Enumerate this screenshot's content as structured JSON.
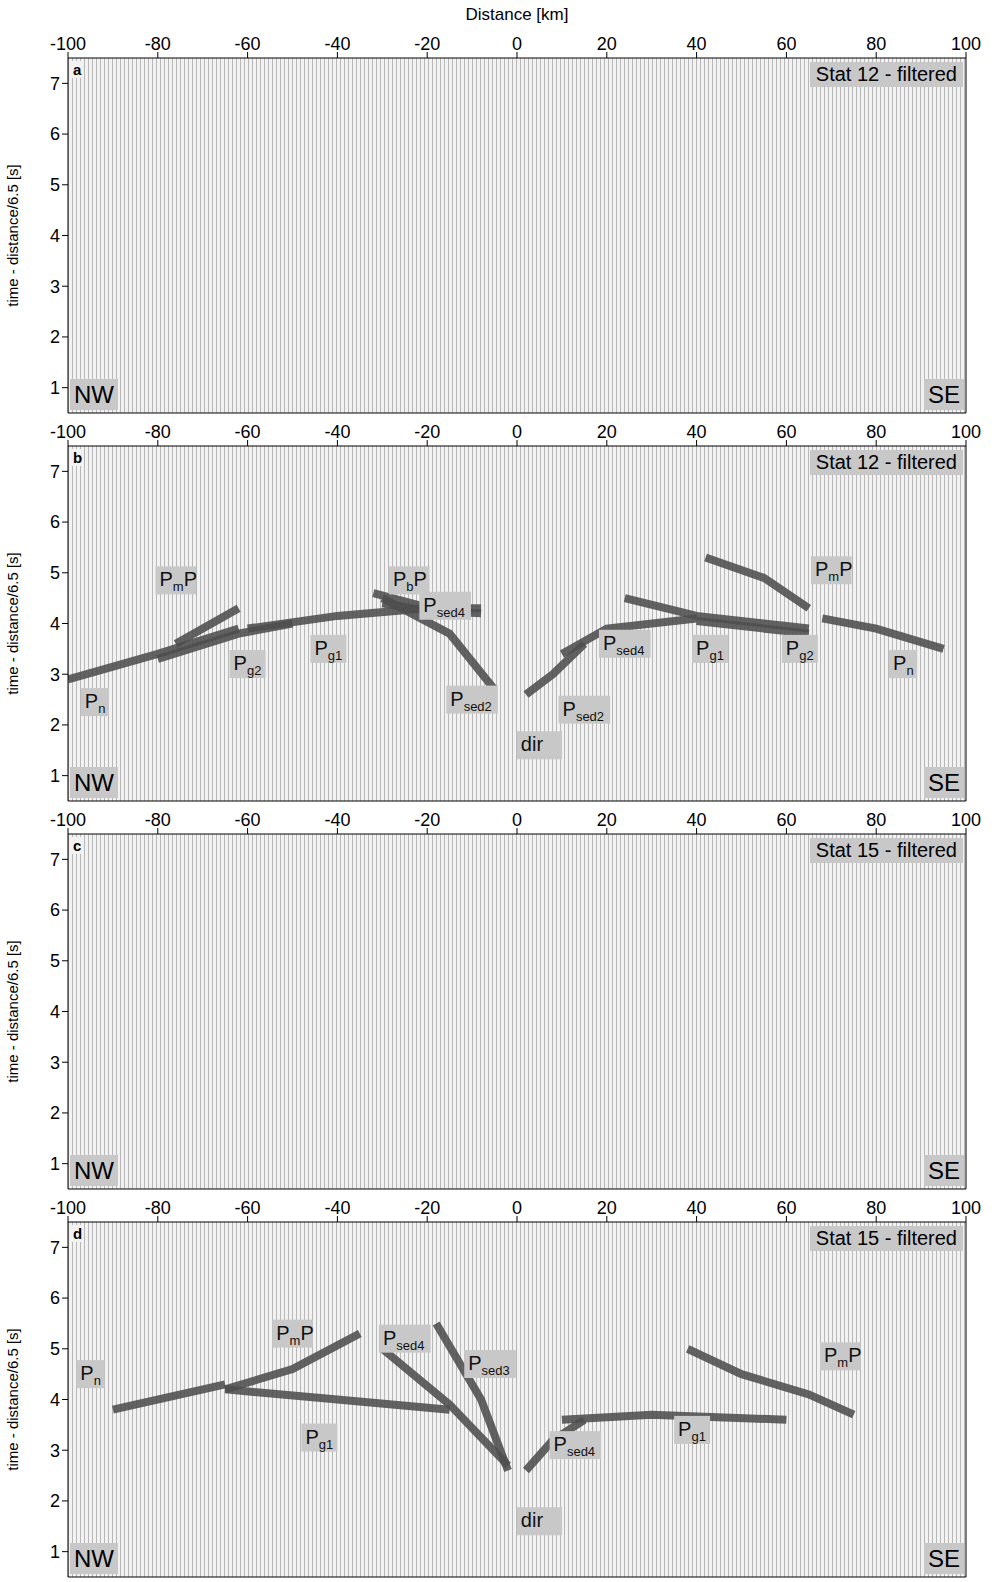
{
  "chart_data": [
    {
      "type": "line",
      "panel": "a",
      "title": "Stat 12 - filtered",
      "x_label": "Distance [km]",
      "y_label": "time - distance/6.5 [s]",
      "xlim": [
        -100,
        100
      ],
      "xticks": [
        -100,
        -80,
        -60,
        -40,
        -20,
        0,
        20,
        40,
        60,
        80,
        100
      ],
      "ylim": [
        0.5,
        7.5
      ],
      "yticks": [
        1,
        2,
        3,
        4,
        5,
        6,
        7
      ],
      "corner_labels": [
        "NW",
        "SE"
      ],
      "series": [],
      "annotations": []
    },
    {
      "type": "line",
      "panel": "b",
      "title": "Stat 12 - filtered",
      "y_label": "time - distance/6.5 [s]",
      "xlim": [
        -100,
        100
      ],
      "xticks": [
        -100,
        -80,
        -60,
        -40,
        -20,
        0,
        20,
        40,
        60,
        80,
        100
      ],
      "ylim": [
        0.5,
        7.5
      ],
      "yticks": [
        1,
        2,
        3,
        4,
        5,
        6,
        7
      ],
      "corner_labels": [
        "NW",
        "SE"
      ],
      "series": [
        {
          "name": "Pn",
          "color": "#4d4d4d",
          "x": [
            -100,
            -80,
            -62
          ],
          "values": [
            2.9,
            3.4,
            3.9
          ]
        },
        {
          "name": "PmP",
          "color": "#4d4d4d",
          "x": [
            -76,
            -62
          ],
          "values": [
            3.6,
            4.3
          ]
        },
        {
          "name": "Pg2",
          "color": "#4d4d4d",
          "x": [
            -80,
            -62,
            -50
          ],
          "values": [
            3.3,
            3.8,
            4.0
          ]
        },
        {
          "name": "Pg1",
          "color": "#4d4d4d",
          "x": [
            -60,
            -40,
            -20,
            -8
          ],
          "values": [
            3.9,
            4.15,
            4.3,
            4.3
          ]
        },
        {
          "name": "PbP",
          "color": "#4d4d4d",
          "x": [
            -32,
            -15
          ],
          "values": [
            4.6,
            4.2
          ]
        },
        {
          "name": "Psed4",
          "color": "#4d4d4d",
          "x": [
            -30,
            -20,
            -8
          ],
          "values": [
            4.4,
            4.25,
            4.2
          ]
        },
        {
          "name": "Psed2",
          "color": "#4d4d4d",
          "x": [
            -30,
            -15,
            -5
          ],
          "values": [
            4.5,
            3.8,
            2.7
          ]
        },
        {
          "name": "Psed2",
          "color": "#4d4d4d",
          "x": [
            2,
            8,
            15
          ],
          "values": [
            2.6,
            3.0,
            3.6
          ]
        },
        {
          "name": "Psed4",
          "color": "#4d4d4d",
          "x": [
            10,
            20,
            40
          ],
          "values": [
            3.4,
            3.9,
            4.1
          ]
        },
        {
          "name": "Pg1",
          "color": "#4d4d4d",
          "x": [
            24,
            40,
            65
          ],
          "values": [
            4.5,
            4.15,
            3.9
          ]
        },
        {
          "name": "PmP",
          "color": "#4d4d4d",
          "x": [
            42,
            55,
            65
          ],
          "values": [
            5.3,
            4.9,
            4.3
          ]
        },
        {
          "name": "Pg2",
          "color": "#4d4d4d",
          "x": [
            40,
            65
          ],
          "values": [
            4.05,
            3.8
          ]
        },
        {
          "name": "Pn",
          "color": "#4d4d4d",
          "x": [
            68,
            80,
            95
          ],
          "values": [
            4.1,
            3.9,
            3.5
          ]
        }
      ],
      "annotations": [
        {
          "text": "PmP",
          "x": -76,
          "y": 4.85
        },
        {
          "text": "Pn",
          "x": -94,
          "y": 2.45
        },
        {
          "text": "Pg2",
          "x": -60,
          "y": 3.2
        },
        {
          "text": "Pg1",
          "x": -42,
          "y": 3.5
        },
        {
          "text": "PbP",
          "x": -24,
          "y": 4.85
        },
        {
          "text": "Psed4",
          "x": -16,
          "y": 4.35
        },
        {
          "text": "Psed2",
          "x": -10,
          "y": 2.5
        },
        {
          "text": "Psed2",
          "x": 15,
          "y": 2.3
        },
        {
          "text": "Psed4",
          "x": 24,
          "y": 3.6
        },
        {
          "text": "Pg1",
          "x": 43,
          "y": 3.5
        },
        {
          "text": "PmP",
          "x": 70,
          "y": 5.05
        },
        {
          "text": "Pg2",
          "x": 63,
          "y": 3.5
        },
        {
          "text": "Pn",
          "x": 86,
          "y": 3.2
        },
        {
          "text": "dir",
          "x": 5,
          "y": 1.6
        }
      ]
    },
    {
      "type": "line",
      "panel": "c",
      "title": "Stat 15 - filtered",
      "y_label": "time - distance/6.5 [s]",
      "xlim": [
        -100,
        100
      ],
      "xticks": [
        -100,
        -80,
        -60,
        -40,
        -20,
        0,
        20,
        40,
        60,
        80,
        100
      ],
      "ylim": [
        0.5,
        7.5
      ],
      "yticks": [
        1,
        2,
        3,
        4,
        5,
        6,
        7
      ],
      "corner_labels": [
        "NW",
        "SE"
      ],
      "series": [],
      "annotations": []
    },
    {
      "type": "line",
      "panel": "d",
      "title": "Stat 15 - filtered",
      "y_label": "time - distance/6.5 [s]",
      "xlim": [
        -100,
        100
      ],
      "xticks": [
        -100,
        -80,
        -60,
        -40,
        -20,
        0,
        20,
        40,
        60,
        80,
        100
      ],
      "ylim": [
        0.5,
        7.5
      ],
      "yticks": [
        1,
        2,
        3,
        4,
        5,
        6,
        7
      ],
      "corner_labels": [
        "NW",
        "SE"
      ],
      "series": [
        {
          "name": "Pn",
          "color": "#4d4d4d",
          "x": [
            -90,
            -65
          ],
          "values": [
            3.8,
            4.3
          ]
        },
        {
          "name": "PmP",
          "color": "#4d4d4d",
          "x": [
            -65,
            -50,
            -35
          ],
          "values": [
            4.2,
            4.6,
            5.3
          ]
        },
        {
          "name": "Pg1",
          "color": "#4d4d4d",
          "x": [
            -65,
            -40,
            -15
          ],
          "values": [
            4.2,
            4.0,
            3.8
          ]
        },
        {
          "name": "Psed4",
          "color": "#4d4d4d",
          "x": [
            -30,
            -15,
            -2
          ],
          "values": [
            5.0,
            3.9,
            2.7
          ]
        },
        {
          "name": "Psed3",
          "color": "#4d4d4d",
          "x": [
            -18,
            -8,
            -2
          ],
          "values": [
            5.5,
            4.0,
            2.6
          ]
        },
        {
          "name": "Psed4",
          "color": "#4d4d4d",
          "x": [
            2,
            8,
            15
          ],
          "values": [
            2.6,
            3.2,
            3.6
          ]
        },
        {
          "name": "Pg1",
          "color": "#4d4d4d",
          "x": [
            10,
            30,
            60
          ],
          "values": [
            3.6,
            3.7,
            3.6
          ]
        },
        {
          "name": "PmP",
          "color": "#4d4d4d",
          "x": [
            38,
            50,
            65,
            75
          ],
          "values": [
            5.0,
            4.5,
            4.1,
            3.7
          ]
        }
      ],
      "annotations": [
        {
          "text": "Pn",
          "x": -95,
          "y": 4.5
        },
        {
          "text": "PmP",
          "x": -50,
          "y": 5.3
        },
        {
          "text": "Psed4",
          "x": -25,
          "y": 5.2
        },
        {
          "text": "Psed3",
          "x": -6,
          "y": 4.7
        },
        {
          "text": "Pg1",
          "x": -44,
          "y": 3.25
        },
        {
          "text": "Psed4",
          "x": 13,
          "y": 3.1
        },
        {
          "text": "Pg1",
          "x": 39,
          "y": 3.4
        },
        {
          "text": "PmP",
          "x": 72,
          "y": 4.85
        },
        {
          "text": "dir",
          "x": 5,
          "y": 1.6
        }
      ]
    }
  ]
}
